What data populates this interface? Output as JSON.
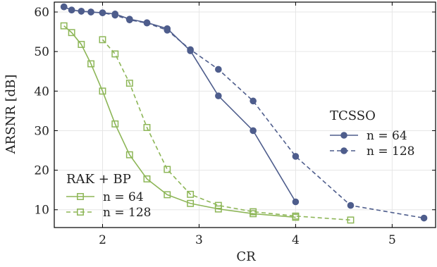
{
  "chart_data": {
    "type": "line",
    "title": "",
    "xlabel": "CR",
    "ylabel": "ARSNR [dB]",
    "xlim": [
      1.5,
      5.45
    ],
    "ylim": [
      5.5,
      62.5
    ],
    "xticks": [
      2,
      3,
      4,
      5
    ],
    "yticks": [
      10,
      20,
      30,
      40,
      50,
      60
    ],
    "grid": true,
    "colors": {
      "tcsso": "#4e5d8c",
      "rak": "#8db657"
    },
    "legends": [
      {
        "group": "TCSSO",
        "placement": "right-middle",
        "series_index": [
          0,
          1
        ]
      },
      {
        "group": "RAK + BP",
        "placement": "bottom-left",
        "series_index": [
          2,
          3
        ]
      }
    ],
    "series": [
      {
        "name": "n = 64",
        "group": "TCSSO",
        "style": "solid",
        "marker": "circle",
        "color": "#4e5d8c",
        "x": [
          1.6,
          1.68,
          1.78,
          1.88,
          2.0,
          2.13,
          2.28,
          2.46,
          2.67,
          2.91,
          3.2,
          3.56,
          4.0
        ],
        "y": [
          61.3,
          60.5,
          60.2,
          60.0,
          59.8,
          59.5,
          58.2,
          57.3,
          55.8,
          50.2,
          38.8,
          30.0,
          12.0
        ]
      },
      {
        "name": "n = 128",
        "group": "TCSSO",
        "style": "dashed",
        "marker": "circle",
        "color": "#4e5d8c",
        "x": [
          1.6,
          1.68,
          1.78,
          1.88,
          2.0,
          2.13,
          2.28,
          2.46,
          2.67,
          2.91,
          3.2,
          3.56,
          4.0,
          4.57,
          5.33
        ],
        "y": [
          61.3,
          60.5,
          60.2,
          60.0,
          59.8,
          59.2,
          58.0,
          57.2,
          55.4,
          50.5,
          45.5,
          37.5,
          23.5,
          11.1,
          7.9
        ]
      },
      {
        "name": "n = 64",
        "group": "RAK + BP",
        "style": "solid",
        "marker": "square",
        "color": "#8db657",
        "x": [
          1.6,
          1.68,
          1.78,
          1.88,
          2.0,
          2.13,
          2.28,
          2.46,
          2.67,
          2.91,
          3.2,
          3.56,
          4.0
        ],
        "y": [
          56.5,
          54.8,
          51.8,
          46.9,
          40.0,
          31.7,
          23.9,
          17.8,
          13.8,
          11.6,
          10.2,
          9.0,
          8.1
        ]
      },
      {
        "name": "n = 128",
        "group": "RAK + BP",
        "style": "dashed",
        "marker": "square",
        "color": "#8db657",
        "x": [
          2.0,
          2.13,
          2.28,
          2.46,
          2.67,
          2.91,
          3.2,
          3.56,
          4.0,
          4.57
        ],
        "y": [
          53.0,
          49.4,
          42.0,
          30.8,
          20.2,
          13.9,
          11.1,
          9.5,
          8.4,
          7.4
        ]
      }
    ]
  }
}
